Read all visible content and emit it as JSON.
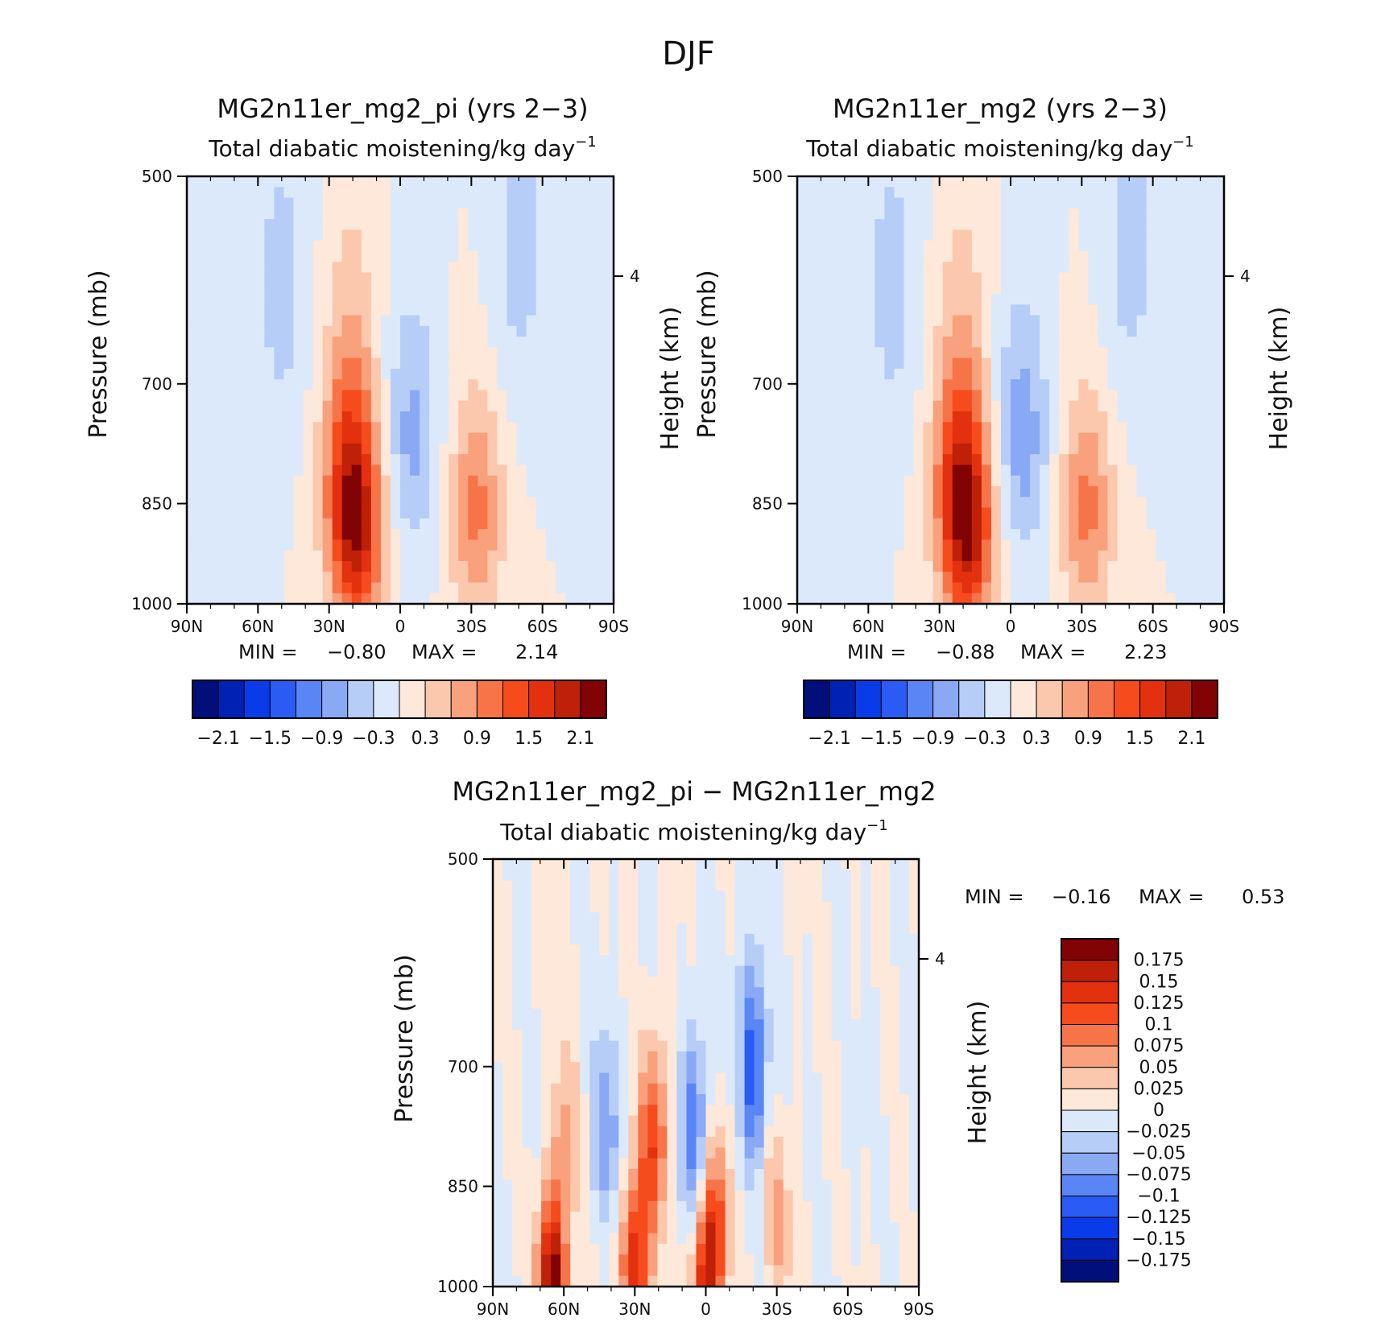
{
  "figure": {
    "title": "DJF"
  },
  "chart_data": [
    {
      "type": "heatmap",
      "title": "MG2n11er_mg2_pi (yrs 2−3)",
      "subtitle": "Total diabatic moistening/kg day",
      "subtitle_superscript": "−1",
      "ylabel": "Pressure (mb)",
      "y2label": "Height (km)",
      "xticks": [
        "90N",
        "60N",
        "30N",
        "0",
        "30S",
        "60S",
        "90S"
      ],
      "yticks": [
        "500",
        "700",
        "850",
        "1000"
      ],
      "y2ticks": [
        "4"
      ],
      "min_label": "MIN =",
      "min_value": "−0.80",
      "max_label": "MAX =",
      "max_value": "2.14",
      "colorbar_labels": [
        "−2.1",
        "−1.5",
        "−0.9",
        "−0.3",
        "0.3",
        "0.9",
        "1.5",
        "2.1"
      ],
      "features": [
        {
          "lat": 18,
          "p": 900,
          "value": 1.6
        },
        {
          "lat": 22,
          "p": 800,
          "value": 1.1
        },
        {
          "lat": 20,
          "p": 620,
          "value": 0.3
        },
        {
          "lat": -32,
          "p": 860,
          "value": 1.0
        },
        {
          "lat": -5,
          "p": 760,
          "value": -0.7
        },
        {
          "lat": 50,
          "p": 600,
          "value": -0.45
        },
        {
          "lat": -50,
          "p": 560,
          "value": -0.45
        }
      ]
    },
    {
      "type": "heatmap",
      "title": "MG2n11er_mg2 (yrs 2−3)",
      "subtitle": "Total diabatic moistening/kg day",
      "subtitle_superscript": "−1",
      "ylabel": "Pressure (mb)",
      "y2label": "Height (km)",
      "xticks": [
        "90N",
        "60N",
        "30N",
        "0",
        "30S",
        "60S",
        "90S"
      ],
      "yticks": [
        "500",
        "700",
        "850",
        "1000"
      ],
      "y2ticks": [
        "4"
      ],
      "min_label": "MIN =",
      "min_value": "−0.88",
      "max_label": "MAX =",
      "max_value": "2.23",
      "colorbar_labels": [
        "−2.1",
        "−1.5",
        "−0.9",
        "−0.3",
        "0.3",
        "0.9",
        "1.5",
        "2.1"
      ],
      "features": [
        {
          "lat": 18,
          "p": 900,
          "value": 1.7
        },
        {
          "lat": 22,
          "p": 800,
          "value": 1.1
        },
        {
          "lat": 20,
          "p": 620,
          "value": 0.3
        },
        {
          "lat": -32,
          "p": 860,
          "value": 1.0
        },
        {
          "lat": -5,
          "p": 760,
          "value": -0.8
        },
        {
          "lat": 50,
          "p": 600,
          "value": -0.45
        },
        {
          "lat": -50,
          "p": 560,
          "value": -0.45
        }
      ]
    },
    {
      "type": "heatmap",
      "title": "MG2n11er_mg2_pi − MG2n11er_mg2",
      "subtitle": "Total diabatic moistening/kg day",
      "subtitle_superscript": "−1",
      "ylabel": "Pressure (mb)",
      "y2label": "Height (km)",
      "xticks": [
        "90N",
        "60N",
        "30N",
        "0",
        "30S",
        "60S",
        "90S"
      ],
      "yticks": [
        "500",
        "700",
        "850",
        "1000"
      ],
      "y2ticks": [
        "4"
      ],
      "min_label": "MIN =",
      "min_value": "−0.16",
      "max_label": "MAX =",
      "max_value": "0.53",
      "colorbar_labels": [
        "0.175",
        "0.15",
        "0.125",
        "0.1",
        "0.075",
        "0.05",
        "0.025",
        "0",
        "−0.025",
        "−0.05",
        "−0.075",
        "−0.1",
        "−0.125",
        "−0.15",
        "−0.175"
      ],
      "features": [
        {
          "lat": 22,
          "p": 790,
          "value": 0.12
        },
        {
          "lat": 60,
          "p": 800,
          "value": 0.06
        },
        {
          "lat": 65,
          "p": 990,
          "value": 0.2
        },
        {
          "lat": 30,
          "p": 960,
          "value": 0.15
        },
        {
          "lat": 0,
          "p": 985,
          "value": 0.15
        },
        {
          "lat": 5,
          "p": 780,
          "value": -0.1
        },
        {
          "lat": -20,
          "p": 700,
          "value": -0.12
        },
        {
          "lat": 42,
          "p": 780,
          "value": -0.07
        },
        {
          "lat": -30,
          "p": 900,
          "value": 0.06
        },
        {
          "lat": -5,
          "p": 880,
          "value": 0.08
        }
      ]
    }
  ],
  "palettes": {
    "main": [
      "#000f7a",
      "#0021b4",
      "#0a3be8",
      "#2a5bf5",
      "#5a86f5",
      "#8aa9f5",
      "#b6cdf7",
      "#dbe9fb",
      "#fde8d9",
      "#fbc8ad",
      "#f9a07d",
      "#f77448",
      "#f64b1d",
      "#e3310f",
      "#bf2008",
      "#820303"
    ],
    "diff": [
      "#000f7a",
      "#0021b4",
      "#0a3be8",
      "#2a5bf5",
      "#5a86f5",
      "#8aa9f5",
      "#b6cdf7",
      "#dbe9fb",
      "#fde8d9",
      "#fbc8ad",
      "#f9a07d",
      "#f77448",
      "#f64b1d",
      "#e3310f",
      "#bf2008",
      "#820303"
    ]
  }
}
